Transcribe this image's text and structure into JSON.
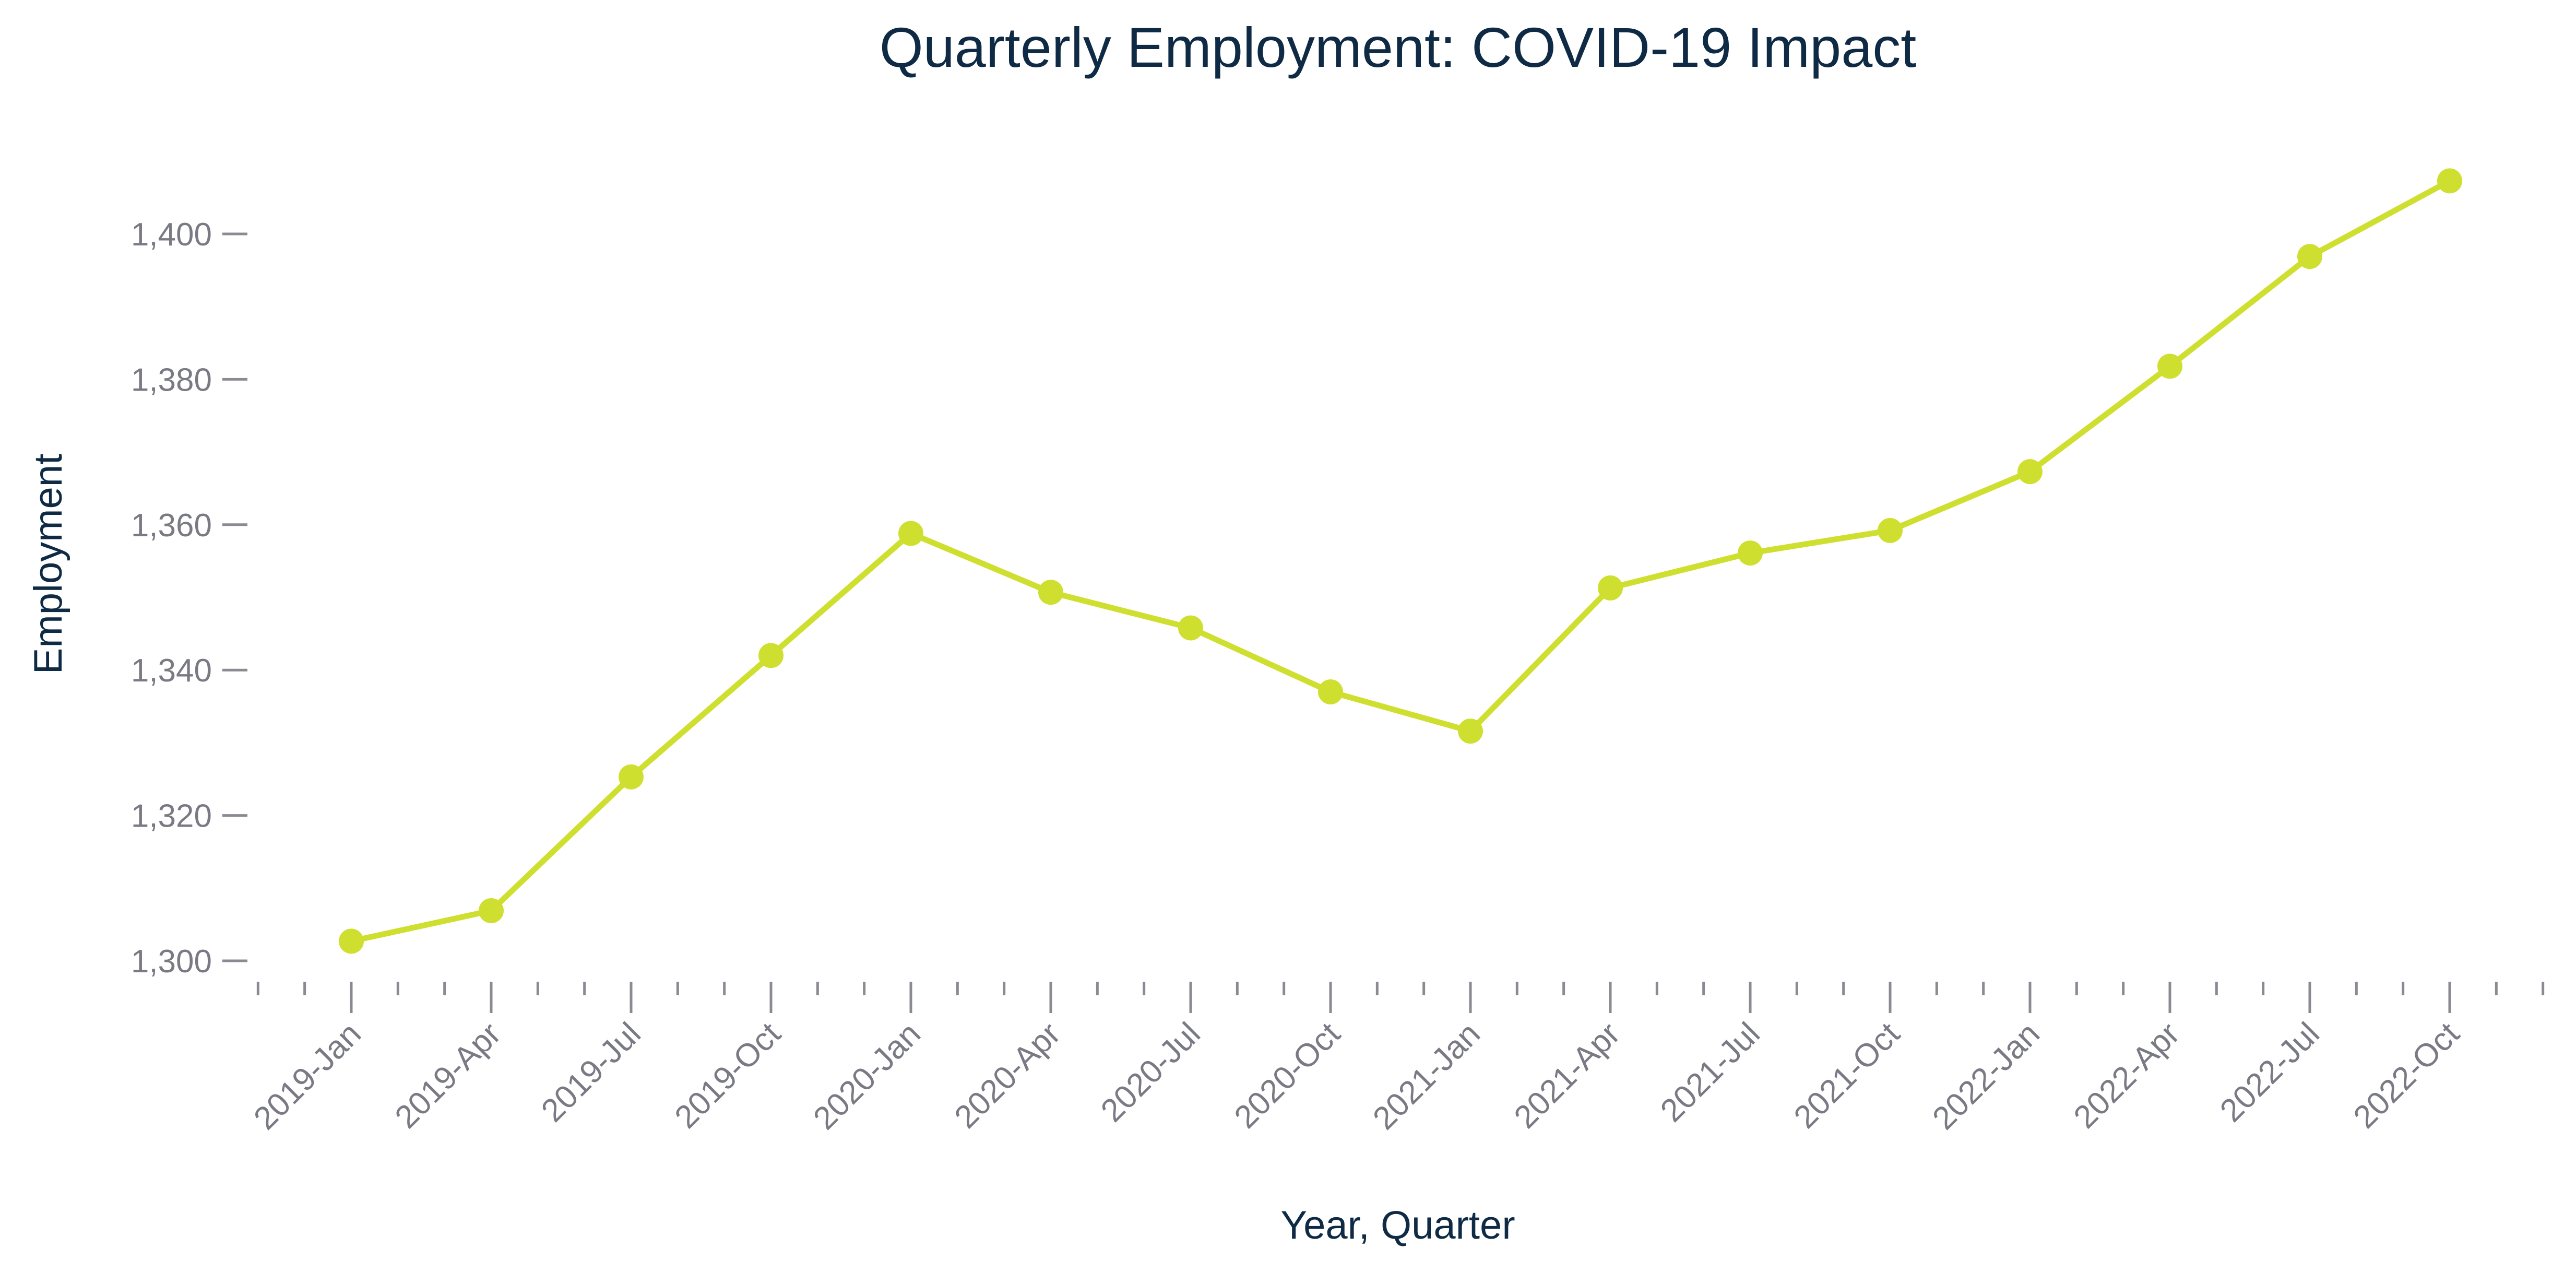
{
  "colors": {
    "series": "#cfdf2f",
    "title": "#0f2a44",
    "tick_text": "#7a7a85",
    "tick_mark": "#8a8a92",
    "background": "#ffffff"
  },
  "chart_data": {
    "type": "line",
    "title": "Quarterly Employment: COVID-19 Impact",
    "xlabel": "Year, Quarter",
    "ylabel": "Employment",
    "categories": [
      "2019-Jan",
      "2019-Apr",
      "2019-Jul",
      "2019-Oct",
      "2020-Jan",
      "2020-Apr",
      "2020-Jul",
      "2020-Oct",
      "2021-Jan",
      "2021-Apr",
      "2021-Jul",
      "2021-Oct",
      "2022-Jan",
      "2022-Apr",
      "2022-Jul",
      "2022-Oct"
    ],
    "series": [
      {
        "values": [
          1302.7,
          1306.9,
          1325.3,
          1342.0,
          1358.8,
          1350.7,
          1345.8,
          1337.0,
          1331.6,
          1351.3,
          1356.1,
          1359.2,
          1367.3,
          1381.8,
          1396.9,
          1407.3
        ]
      }
    ],
    "yticks": [
      1300,
      1320,
      1340,
      1360,
      1380,
      1400
    ],
    "ytick_labels": [
      "1,300",
      "1,320",
      "1,340",
      "1,360",
      "1,380",
      "1,400"
    ],
    "ylim": [
      1300,
      1400
    ],
    "grid": false,
    "legend": "none",
    "minor_x_ticks_per_interval": 2
  }
}
